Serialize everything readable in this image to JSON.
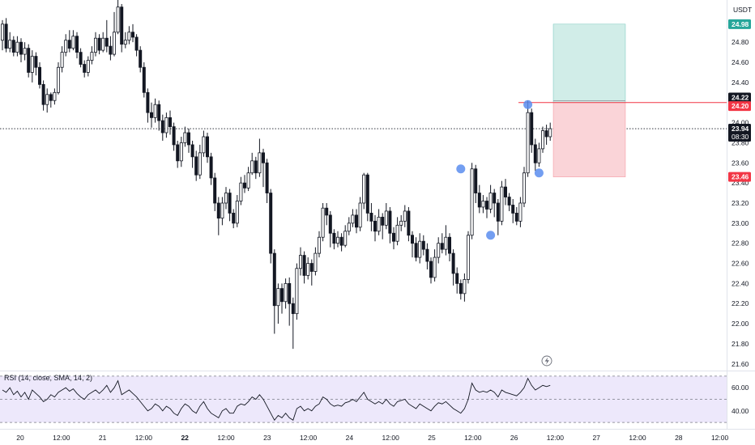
{
  "chart_data": {
    "type": "candlestick",
    "currency": "USDT",
    "price_axis": {
      "ticks": [
        "24.80",
        "24.60",
        "24.40",
        "24.20",
        "24.00",
        "23.80",
        "23.60",
        "23.40",
        "23.20",
        "23.00",
        "22.80",
        "22.60",
        "22.40",
        "22.20",
        "22.00",
        "21.80",
        "21.60"
      ],
      "range": [
        21.55,
        25.22
      ]
    },
    "time_axis": {
      "ticks": [
        "20",
        "12:00",
        "21",
        "12:00",
        "22",
        "12:00",
        "23",
        "12:00",
        "24",
        "12:00",
        "25",
        "12:00",
        "26",
        "12:00",
        "27",
        "12:00",
        "28",
        "12:00"
      ],
      "bold_ticks": [
        "22"
      ]
    },
    "price_badges": {
      "target": "24.98",
      "level_upper": "24.22",
      "entry": "24.20",
      "current_price": "23.94",
      "countdown": "08:30",
      "stop": "23.46"
    },
    "position_box": {
      "entry": 24.2,
      "target": 24.98,
      "stop": 23.46
    },
    "candles": [
      [
        24.82,
        24.98,
        25.02,
        24.72
      ],
      [
        24.98,
        24.74,
        25.04,
        24.7
      ],
      [
        24.74,
        24.82,
        24.9,
        24.7
      ],
      [
        24.82,
        24.7,
        24.86,
        24.66
      ],
      [
        24.7,
        24.8,
        24.86,
        24.66
      ],
      [
        24.8,
        24.68,
        24.84,
        24.6
      ],
      [
        24.68,
        24.74,
        24.8,
        24.62
      ],
      [
        24.74,
        24.5,
        24.78,
        24.45
      ],
      [
        24.5,
        24.66,
        24.72,
        24.4
      ],
      [
        24.66,
        24.55,
        24.7,
        24.47
      ],
      [
        24.55,
        24.38,
        24.6,
        24.34
      ],
      [
        24.38,
        24.18,
        24.42,
        24.12
      ],
      [
        24.18,
        24.28,
        24.34,
        24.1
      ],
      [
        24.28,
        24.22,
        24.3,
        24.15
      ],
      [
        24.22,
        24.3,
        24.34,
        24.18
      ],
      [
        24.3,
        24.55,
        24.6,
        24.28
      ],
      [
        24.55,
        24.7,
        24.76,
        24.5
      ],
      [
        24.7,
        24.82,
        24.88,
        24.66
      ],
      [
        24.82,
        24.74,
        24.92,
        24.7
      ],
      [
        24.74,
        24.86,
        24.92,
        24.72
      ],
      [
        24.86,
        24.7,
        24.9,
        24.64
      ],
      [
        24.7,
        24.58,
        24.74,
        24.55
      ],
      [
        24.58,
        24.5,
        24.62,
        24.45
      ],
      [
        24.5,
        24.62,
        24.66,
        24.46
      ],
      [
        24.62,
        24.7,
        24.76,
        24.58
      ],
      [
        24.7,
        24.84,
        24.9,
        24.66
      ],
      [
        24.84,
        24.72,
        24.88,
        24.68
      ],
      [
        24.72,
        24.84,
        24.9,
        24.7
      ],
      [
        24.84,
        24.76,
        25.02,
        24.7
      ],
      [
        24.76,
        24.68,
        24.86,
        24.62
      ],
      [
        24.68,
        24.9,
        25.1,
        24.66
      ],
      [
        24.9,
        25.15,
        25.25,
        24.88
      ],
      [
        25.15,
        24.78,
        25.18,
        24.7
      ],
      [
        24.78,
        24.82,
        24.9,
        24.74
      ],
      [
        24.82,
        24.9,
        24.96,
        24.78
      ],
      [
        24.9,
        24.85,
        24.98,
        24.8
      ],
      [
        24.85,
        24.72,
        24.88,
        24.66
      ],
      [
        24.72,
        24.55,
        24.76,
        24.5
      ],
      [
        24.55,
        24.3,
        24.6,
        24.25
      ],
      [
        24.3,
        24.1,
        24.34,
        24.0
      ],
      [
        24.1,
        24.05,
        24.2,
        23.95
      ],
      [
        24.05,
        24.18,
        24.24,
        24.0
      ],
      [
        24.18,
        24.02,
        24.22,
        23.92
      ],
      [
        24.02,
        23.9,
        24.08,
        23.82
      ],
      [
        23.9,
        24.05,
        24.1,
        23.85
      ],
      [
        24.05,
        23.96,
        24.12,
        23.88
      ],
      [
        23.96,
        23.78,
        24.0,
        23.72
      ],
      [
        23.78,
        23.62,
        23.82,
        23.55
      ],
      [
        23.62,
        23.8,
        23.86,
        23.56
      ],
      [
        23.8,
        23.9,
        23.96,
        23.76
      ],
      [
        23.9,
        23.78,
        23.94,
        23.7
      ],
      [
        23.78,
        23.66,
        23.82,
        23.55
      ],
      [
        23.66,
        23.48,
        23.72,
        23.42
      ],
      [
        23.48,
        23.7,
        23.78,
        23.44
      ],
      [
        23.7,
        23.86,
        23.92,
        23.66
      ],
      [
        23.86,
        23.66,
        23.9,
        23.6
      ],
      [
        23.66,
        23.45,
        23.7,
        23.38
      ],
      [
        23.45,
        23.2,
        23.5,
        23.12
      ],
      [
        23.2,
        23.05,
        23.26,
        22.88
      ],
      [
        23.05,
        23.2,
        23.26,
        22.98
      ],
      [
        23.2,
        23.3,
        23.36,
        23.14
      ],
      [
        23.3,
        23.1,
        23.34,
        23.02
      ],
      [
        23.1,
        23.0,
        23.14,
        22.95
      ],
      [
        23.0,
        23.22,
        23.28,
        22.96
      ],
      [
        23.22,
        23.4,
        23.46,
        23.18
      ],
      [
        23.4,
        23.35,
        23.48,
        23.3
      ],
      [
        23.35,
        23.5,
        23.56,
        23.32
      ],
      [
        23.5,
        23.62,
        23.7,
        23.48
      ],
      [
        23.62,
        23.5,
        23.66,
        23.44
      ],
      [
        23.5,
        23.7,
        23.84,
        23.46
      ],
      [
        23.7,
        23.6,
        23.74,
        23.36
      ],
      [
        23.6,
        23.3,
        23.64,
        23.2
      ],
      [
        23.3,
        22.7,
        23.34,
        22.6
      ],
      [
        22.7,
        22.18,
        22.74,
        21.9
      ],
      [
        22.18,
        22.35,
        22.4,
        22.0
      ],
      [
        22.35,
        22.22,
        22.4,
        22.1
      ],
      [
        22.22,
        22.4,
        22.45,
        22.15
      ],
      [
        22.4,
        22.2,
        22.46,
        21.98
      ],
      [
        22.2,
        22.1,
        22.26,
        21.75
      ],
      [
        22.1,
        22.55,
        22.6,
        22.04
      ],
      [
        22.55,
        22.68,
        22.76,
        22.48
      ],
      [
        22.68,
        22.48,
        22.72,
        22.4
      ],
      [
        22.48,
        22.6,
        22.66,
        22.44
      ],
      [
        22.6,
        22.52,
        22.64,
        22.38
      ],
      [
        22.52,
        22.7,
        22.76,
        22.48
      ],
      [
        22.7,
        22.86,
        22.92,
        22.66
      ],
      [
        22.86,
        23.15,
        23.2,
        22.82
      ],
      [
        23.15,
        23.08,
        23.2,
        22.98
      ],
      [
        23.08,
        22.9,
        23.12,
        22.76
      ],
      [
        22.9,
        22.8,
        22.94,
        22.74
      ],
      [
        22.8,
        22.86,
        22.92,
        22.76
      ],
      [
        22.86,
        22.78,
        22.9,
        22.72
      ],
      [
        22.78,
        22.92,
        22.98,
        22.76
      ],
      [
        22.92,
        23.0,
        23.06,
        22.88
      ],
      [
        23.0,
        23.08,
        23.14,
        22.96
      ],
      [
        23.08,
        22.96,
        23.14,
        22.9
      ],
      [
        22.96,
        23.2,
        23.26,
        22.92
      ],
      [
        23.2,
        23.48,
        23.5,
        23.14
      ],
      [
        23.48,
        23.1,
        23.5,
        23.02
      ],
      [
        23.1,
        23.02,
        23.2,
        22.92
      ],
      [
        23.02,
        22.92,
        23.08,
        22.82
      ],
      [
        22.92,
        23.06,
        23.14,
        22.88
      ],
      [
        23.06,
        22.98,
        23.1,
        22.84
      ],
      [
        22.98,
        23.12,
        23.2,
        22.94
      ],
      [
        23.12,
        22.9,
        23.16,
        22.8
      ],
      [
        22.9,
        22.82,
        22.96,
        22.74
      ],
      [
        22.82,
        22.98,
        23.06,
        22.78
      ],
      [
        22.98,
        23.02,
        23.08,
        22.92
      ],
      [
        23.02,
        23.12,
        23.18,
        22.96
      ],
      [
        23.12,
        22.88,
        23.16,
        22.82
      ],
      [
        22.88,
        22.8,
        22.92,
        22.66
      ],
      [
        22.8,
        22.66,
        22.86,
        22.62
      ],
      [
        22.66,
        22.82,
        22.9,
        22.6
      ],
      [
        22.82,
        22.74,
        22.88,
        22.68
      ],
      [
        22.74,
        22.62,
        22.8,
        22.54
      ],
      [
        22.62,
        22.46,
        22.66,
        22.4
      ],
      [
        22.46,
        22.66,
        22.74,
        22.42
      ],
      [
        22.66,
        22.8,
        22.86,
        22.6
      ],
      [
        22.8,
        22.74,
        22.9,
        22.7
      ],
      [
        22.74,
        22.86,
        22.98,
        22.68
      ],
      [
        22.86,
        22.7,
        22.9,
        22.62
      ],
      [
        22.7,
        22.5,
        22.74,
        22.38
      ],
      [
        22.5,
        22.4,
        22.56,
        22.3
      ],
      [
        22.4,
        22.3,
        22.44,
        22.24
      ],
      [
        22.3,
        22.44,
        22.5,
        22.22
      ],
      [
        22.44,
        22.88,
        22.92,
        22.4
      ],
      [
        22.88,
        23.54,
        23.6,
        22.84
      ],
      [
        23.54,
        23.3,
        23.58,
        23.2
      ],
      [
        23.3,
        23.16,
        23.38,
        23.1
      ],
      [
        23.16,
        23.22,
        23.28,
        23.1
      ],
      [
        23.22,
        23.14,
        23.26,
        23.05
      ],
      [
        23.14,
        23.3,
        23.38,
        23.1
      ],
      [
        23.3,
        23.2,
        23.34,
        23.06
      ],
      [
        23.2,
        23.02,
        23.24,
        22.88
      ],
      [
        23.02,
        23.36,
        23.42,
        22.98
      ],
      [
        23.36,
        23.26,
        23.44,
        23.18
      ],
      [
        23.26,
        23.18,
        23.3,
        23.12
      ],
      [
        23.18,
        23.1,
        23.24,
        23.0
      ],
      [
        23.1,
        23.02,
        23.16,
        22.98
      ],
      [
        23.02,
        23.2,
        23.26,
        22.96
      ],
      [
        23.2,
        23.5,
        23.56,
        23.16
      ],
      [
        23.5,
        24.1,
        24.22,
        23.46
      ],
      [
        24.1,
        23.78,
        24.14,
        23.7
      ],
      [
        23.78,
        23.6,
        23.84,
        23.52
      ],
      [
        23.6,
        23.74,
        23.8,
        23.56
      ],
      [
        23.74,
        23.92,
        23.96,
        23.7
      ],
      [
        23.92,
        23.86,
        23.98,
        23.78
      ],
      [
        23.86,
        23.94,
        24.0,
        23.82
      ]
    ],
    "markers": [
      [
        23.54,
        "circle"
      ],
      [
        22.88,
        "circle"
      ],
      [
        24.18,
        "circle"
      ],
      [
        23.5,
        "circle"
      ]
    ],
    "indicator": {
      "title": "RSI (14, close, SMA, 14, 2)",
      "ticks": [
        "60.00",
        "40.00"
      ],
      "range": [
        28,
        72
      ],
      "bands": [
        70,
        50,
        30
      ],
      "values": [
        58,
        56,
        60,
        54,
        57,
        52,
        56,
        50,
        58,
        55,
        52,
        48,
        50,
        54,
        52,
        56,
        58,
        60,
        57,
        59,
        55,
        52,
        50,
        54,
        56,
        58,
        55,
        58,
        62,
        56,
        60,
        66,
        54,
        56,
        58,
        55,
        52,
        48,
        44,
        40,
        42,
        46,
        44,
        40,
        44,
        42,
        38,
        36,
        42,
        46,
        44,
        40,
        38,
        44,
        48,
        42,
        38,
        36,
        34,
        40,
        42,
        38,
        38,
        44,
        46,
        45,
        48,
        52,
        50,
        54,
        50,
        44,
        38,
        32,
        36,
        34,
        38,
        34,
        32,
        42,
        44,
        40,
        42,
        40,
        44,
        46,
        52,
        50,
        46,
        44,
        45,
        44,
        47,
        48,
        50,
        48,
        52,
        56,
        50,
        48,
        46,
        48,
        46,
        50,
        46,
        44,
        48,
        49,
        50,
        46,
        44,
        42,
        46,
        44,
        42,
        40,
        44,
        47,
        46,
        48,
        45,
        42,
        40,
        38,
        42,
        50,
        64,
        58,
        56,
        57,
        56,
        58,
        56,
        52,
        58,
        56,
        55,
        54,
        53,
        56,
        60,
        68,
        62,
        58,
        60,
        62,
        61,
        62
      ]
    },
    "flash_icon": "lightning-bolt-icon",
    "colors": {
      "candle": "#131722",
      "target_zone": "#d1ede8",
      "target_border": "#26a69a",
      "stop_zone": "#fad4d8",
      "stop_border": "#f23645",
      "entry_line": "#f23645",
      "marker": "#5b8def",
      "rsi_line": "#131722",
      "rsi_band": "#ede8fb",
      "axis_text": "#131722",
      "badge_current": "#131722"
    }
  }
}
